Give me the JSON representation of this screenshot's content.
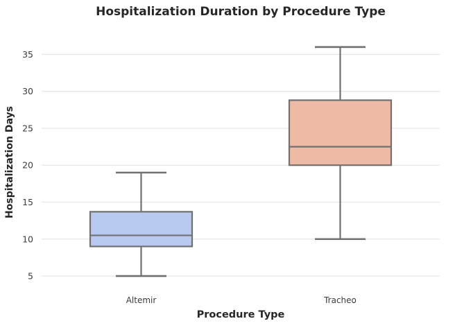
{
  "figure": {
    "background": "#ffffff"
  },
  "chart_data": {
    "type": "box",
    "title": "Hospitalization Duration by Procedure Type",
    "xlabel": "Procedure Type",
    "ylabel": "Hospitalization Days",
    "categories": [
      "Altemir",
      "Tracheo"
    ],
    "series": [
      {
        "name": "Altemir",
        "whisker_low": 5,
        "q1": 9,
        "median": 10.5,
        "q3": 13.7,
        "whisker_high": 19,
        "fill": "#b7c9ee"
      },
      {
        "name": "Tracheo",
        "whisker_low": 10,
        "q1": 20,
        "median": 22.5,
        "q3": 28.8,
        "whisker_high": 36,
        "fill": "#edbaa5"
      }
    ],
    "yticks": [
      5,
      10,
      15,
      20,
      25,
      30,
      35
    ],
    "ylim": [
      3.5,
      37.2
    ],
    "grid": true,
    "legend_position": "none",
    "colors": {
      "box_edge": "#707070",
      "whisker": "#707070",
      "median": "#707070",
      "grid": "#e6e6e6",
      "title_text": "#262626",
      "tick_text": "#3b3b3b"
    }
  }
}
